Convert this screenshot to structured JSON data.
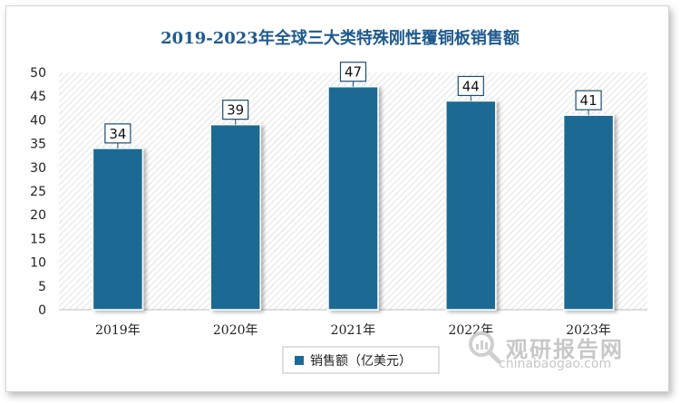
{
  "chart_data": {
    "type": "bar",
    "title": "2019-2023年全球三大类特殊刚性覆铜板销售额",
    "categories": [
      "2019年",
      "2020年",
      "2021年",
      "2022年",
      "2023年"
    ],
    "series": [
      {
        "name": "销售额（亿美元）",
        "values": [
          34,
          39,
          47,
          44,
          41
        ],
        "color": "#1b6a93"
      }
    ],
    "yticks": [
      "0",
      "5",
      "10",
      "15",
      "20",
      "25",
      "30",
      "35",
      "40",
      "45",
      "50"
    ],
    "ylim": [
      0,
      50
    ],
    "grid": false,
    "legend": "bottom-center",
    "plot_background": "diagonal-hatch"
  },
  "watermark": {
    "name": "观研报告网",
    "url": "chinabaogao.com",
    "icon": "magnifier-logo-icon"
  }
}
